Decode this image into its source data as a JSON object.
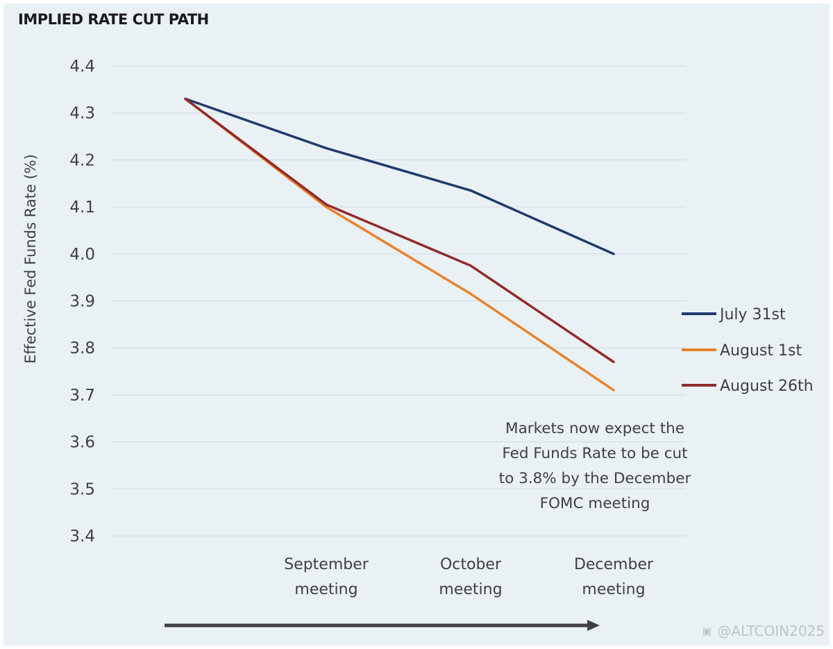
{
  "chart_data": {
    "type": "line",
    "title": "IMPLIED RATE CUT PATH",
    "ylabel": "Effective Fed Funds Rate (%)",
    "xlabel": "",
    "ylim": [
      3.4,
      4.4
    ],
    "yticks": [
      "4.4",
      "4.3",
      "4.2",
      "4.1",
      "4.0",
      "3.9",
      "3.8",
      "3.7",
      "3.6",
      "3.5",
      "3.4"
    ],
    "categories": [
      "",
      "September meeting",
      "October meeting",
      "December meeting"
    ],
    "category_lines": [
      [],
      [
        "September",
        "meeting"
      ],
      [
        "October",
        "meeting"
      ],
      [
        "December",
        "meeting"
      ]
    ],
    "series": [
      {
        "name": "July 31st",
        "color": "#1f3a6e",
        "values": [
          4.33,
          4.225,
          4.135,
          4.0
        ]
      },
      {
        "name": "August 1st",
        "color": "#e9822b",
        "values": [
          4.33,
          4.1,
          3.915,
          3.71
        ]
      },
      {
        "name": "August 26th",
        "color": "#922a2c",
        "values": [
          4.33,
          4.105,
          3.975,
          3.77
        ]
      }
    ],
    "legend_position": "right",
    "grid": true,
    "annotation": [
      "Markets now expect the",
      "Fed Funds Rate to be cut",
      "to 3.8% by the December",
      "FOMC meeting"
    ]
  },
  "watermark": "@ALTCOIN2025"
}
